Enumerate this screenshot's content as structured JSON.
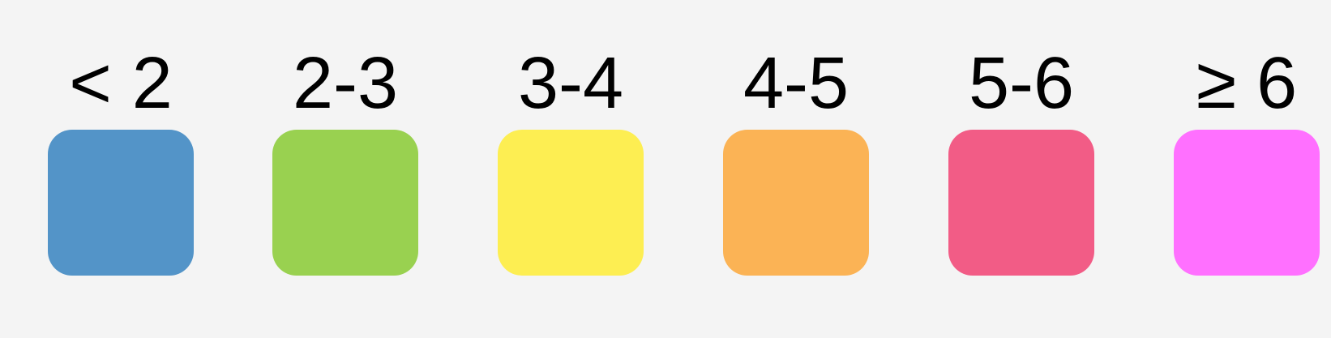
{
  "legend": {
    "items": [
      {
        "label": "< 2",
        "color": "#5394c8"
      },
      {
        "label": "2-3",
        "color": "#99d150"
      },
      {
        "label": "3-4",
        "color": "#fdee52"
      },
      {
        "label": "4-5",
        "color": "#fbb355"
      },
      {
        "label": "5-6",
        "color": "#f25c86"
      },
      {
        "label": "≥ 6",
        "color": "#ff70ff"
      }
    ]
  }
}
